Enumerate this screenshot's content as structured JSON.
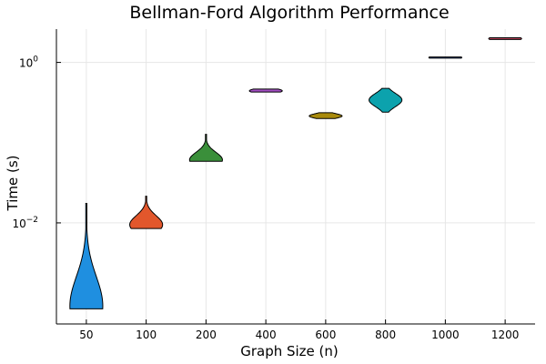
{
  "chart_data": {
    "type": "violin",
    "title": "Bellman-Ford Algorithm Performance",
    "xlabel": "Graph Size (n)",
    "ylabel": "Time (s)",
    "yscale": "log10",
    "ylim": [
      0.00055,
      2.6
    ],
    "grid": true,
    "legend": "none",
    "categories": [
      "50",
      "100",
      "200",
      "400",
      "600",
      "800",
      "1000",
      "1200"
    ],
    "y_ticks": [
      {
        "value": 1,
        "base": "10",
        "exp": "0"
      },
      {
        "value": 0.01,
        "base": "10",
        "exp": "−2"
      }
    ],
    "series": [
      {
        "category": "50",
        "color": "#1f8fe0",
        "min": 0.00085,
        "max": 0.0175,
        "median": 0.00092,
        "max_width": 0.55
      },
      {
        "category": "100",
        "color": "#e2572c",
        "min": 0.0085,
        "max": 0.0215,
        "median": 0.0095,
        "max_width": 0.55
      },
      {
        "category": "200",
        "color": "#3a8f3a",
        "min": 0.0585,
        "max": 0.127,
        "median": 0.061,
        "max_width": 0.55
      },
      {
        "category": "400",
        "color": "#a24ec2",
        "min": 0.427,
        "max": 0.465,
        "median": 0.442,
        "max_width": 0.55
      },
      {
        "category": "600",
        "color": "#a88a0c",
        "min": 0.2,
        "max": 0.236,
        "median": 0.215,
        "max_width": 0.55
      },
      {
        "category": "800",
        "color": "#0ca2ad",
        "min": 0.24,
        "max": 0.475,
        "median": 0.34,
        "max_width": 0.55
      },
      {
        "category": "1000",
        "color": "#2f67c9",
        "min": 1.13,
        "max": 1.17,
        "median": 1.15,
        "max_width": 0.55
      },
      {
        "category": "1200",
        "color": "#c9455e",
        "min": 1.93,
        "max": 2.03,
        "median": 1.98,
        "max_width": 0.55
      }
    ]
  }
}
